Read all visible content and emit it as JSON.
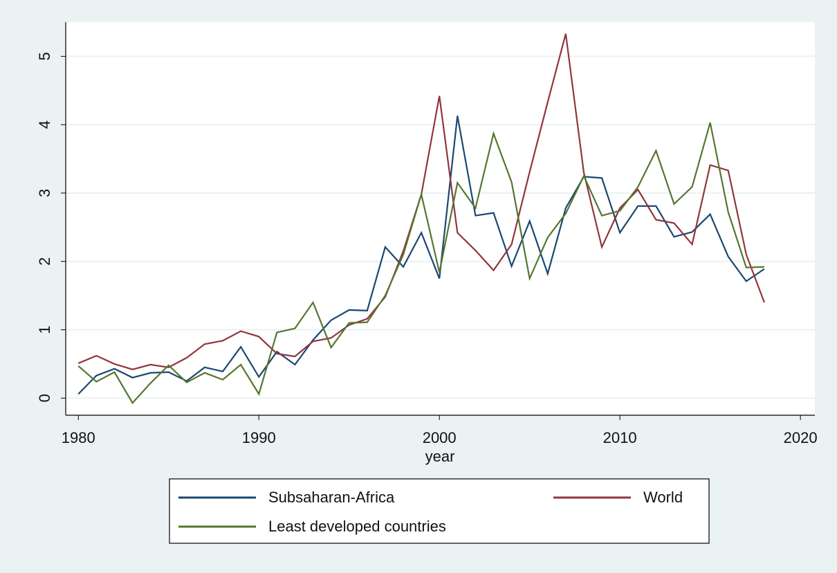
{
  "chart_data": {
    "type": "line",
    "x_label": "year",
    "x": [
      1980,
      1981,
      1982,
      1983,
      1984,
      1985,
      1986,
      1987,
      1988,
      1989,
      1990,
      1991,
      1992,
      1993,
      1994,
      1995,
      1996,
      1997,
      1998,
      1999,
      2000,
      2001,
      2002,
      2003,
      2004,
      2005,
      2006,
      2007,
      2008,
      2009,
      2010,
      2011,
      2012,
      2013,
      2014,
      2015,
      2016,
      2017,
      2018
    ],
    "series": [
      {
        "name": "Subsaharan-Africa",
        "color": "#1a476f",
        "values": [
          0.06,
          0.33,
          0.43,
          0.3,
          0.37,
          0.38,
          0.25,
          0.45,
          0.39,
          0.75,
          0.31,
          0.68,
          0.49,
          0.85,
          1.14,
          1.29,
          1.28,
          2.21,
          1.92,
          2.42,
          1.75,
          4.13,
          2.67,
          2.71,
          1.93,
          2.59,
          1.82,
          2.78,
          3.24,
          3.22,
          2.42,
          2.81,
          2.81,
          2.36,
          2.43,
          2.69,
          2.07,
          1.71,
          1.89
        ]
      },
      {
        "name": "World",
        "color": "#90353b",
        "values": [
          0.51,
          0.62,
          0.5,
          0.42,
          0.49,
          0.45,
          0.59,
          0.79,
          0.84,
          0.98,
          0.9,
          0.65,
          0.61,
          0.83,
          0.88,
          1.07,
          1.16,
          1.48,
          2.15,
          2.98,
          4.42,
          2.42,
          2.16,
          1.87,
          2.25,
          3.31,
          4.33,
          5.33,
          3.3,
          2.21,
          2.78,
          3.05,
          2.61,
          2.56,
          2.25,
          3.41,
          3.33,
          2.1,
          1.4
        ]
      },
      {
        "name": "Least developed countries",
        "color": "#55752f",
        "values": [
          0.47,
          0.24,
          0.38,
          -0.07,
          0.22,
          0.48,
          0.23,
          0.37,
          0.27,
          0.49,
          0.06,
          0.96,
          1.02,
          1.4,
          0.74,
          1.1,
          1.11,
          1.5,
          2.1,
          2.98,
          1.84,
          3.15,
          2.78,
          3.87,
          3.16,
          1.75,
          2.35,
          2.7,
          3.25,
          2.67,
          2.74,
          3.09,
          3.62,
          2.84,
          3.09,
          4.03,
          2.72,
          1.91,
          1.92
        ]
      }
    ],
    "xlim": [
      1979.3,
      2020.8
    ],
    "xticks": [
      1980,
      1990,
      2000,
      2010,
      2020
    ],
    "ylim": [
      -0.25,
      5.5
    ],
    "yticks": [
      0,
      1,
      2,
      3,
      4,
      5
    ],
    "grid": true
  }
}
